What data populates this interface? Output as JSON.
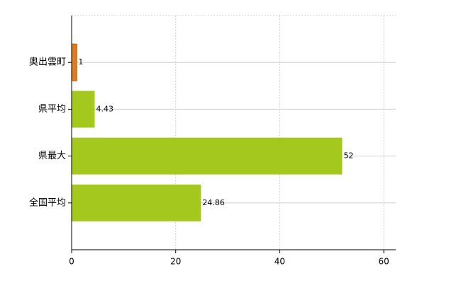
{
  "chart_data": {
    "type": "barh",
    "categories": [
      "奥出雲町",
      "県平均",
      "県最大",
      "全国平均"
    ],
    "values": [
      1,
      4.43,
      52,
      24.86
    ],
    "colors": [
      "#e07b20",
      "#a5c81f",
      "#a5c81f",
      "#a5c81f"
    ],
    "xlim": [
      0,
      62.3
    ],
    "xticks": [
      0,
      20,
      40,
      60
    ],
    "grid": true
  }
}
